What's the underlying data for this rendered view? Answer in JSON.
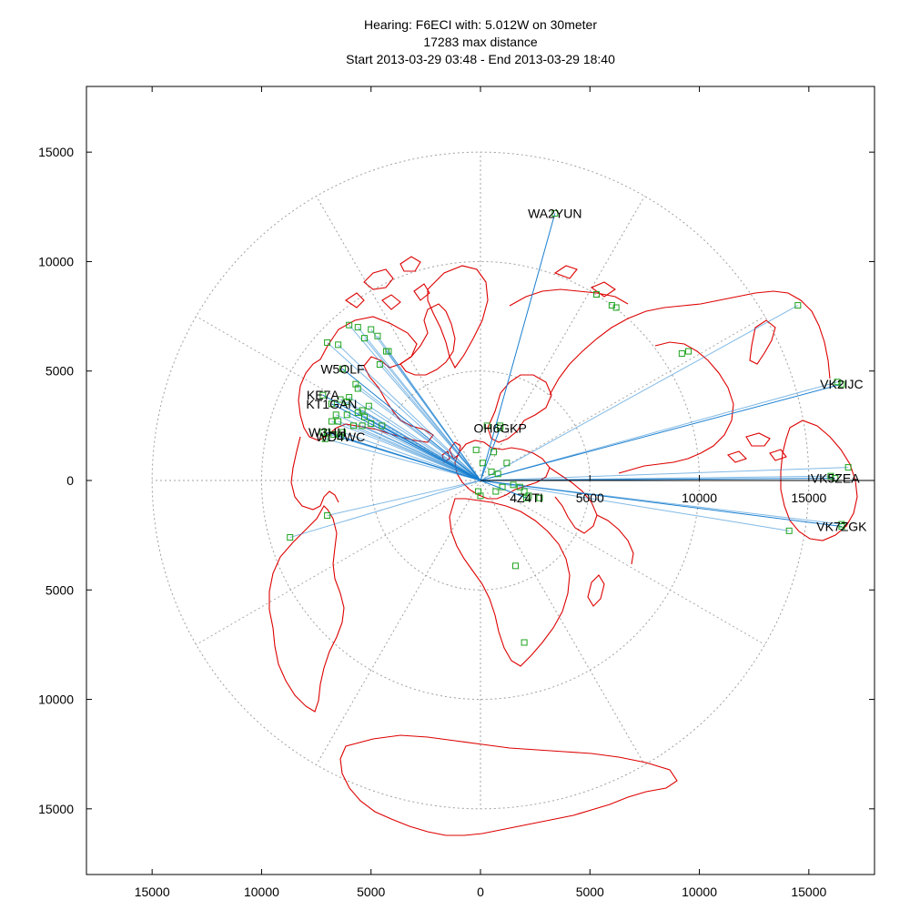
{
  "title": {
    "line1": "Hearing: F6ECI with: 5.012W on 30meter",
    "line2": "17283 max distance",
    "line3": "Start 2013-03-29 03:48 - End 2013-03-29 18:40"
  },
  "colors": {
    "coastline": "#dd0000",
    "path": "#1a7fd0",
    "spot": "#1fa31f",
    "grid": "#a0a0a0"
  },
  "chart_data": {
    "type": "scatter",
    "projection": "azimuthal-equidistant",
    "xlim": [
      -18000,
      18000
    ],
    "ylim": [
      -18000,
      18000
    ],
    "grid": true,
    "x_ticks": [
      "15000",
      "10000",
      "5000",
      "0",
      "5000",
      "10000",
      "15000"
    ],
    "x_tick_values": [
      -15000,
      -10000,
      -5000,
      0,
      5000,
      10000,
      15000
    ],
    "y_ticks": [
      "15000",
      "10000",
      "5000",
      "0",
      "5000",
      "10000",
      "15000"
    ],
    "y_tick_values": [
      15000,
      10000,
      5000,
      0,
      -5000,
      -10000,
      -15000
    ],
    "inner_axis_labels": [
      "5000",
      "10000",
      "15000"
    ],
    "inner_axis_values": [
      5000,
      10000,
      15000
    ],
    "rings": [
      5000,
      10000,
      15000
    ],
    "stations": [
      {
        "call": "WA2YUN",
        "x": 3400,
        "y": 12200
      },
      {
        "call": "VK2IJC",
        "x": 16500,
        "y": 4400
      },
      {
        "call": "VK5ZEA",
        "x": 16200,
        "y": 100
      },
      {
        "call": "VK7ZGK",
        "x": 16500,
        "y": -2100
      },
      {
        "call": "W5OLF",
        "x": -6300,
        "y": 5100
      },
      {
        "call": "KE7A",
        "x": -7200,
        "y": 3900
      },
      {
        "call": "KT1GAN",
        "x": -6800,
        "y": 3500
      },
      {
        "call": "W3HH",
        "x": -7000,
        "y": 2200
      },
      {
        "call": "WD4WC",
        "x": -6400,
        "y": 2000
      },
      {
        "call": "OH6GKP",
        "x": 900,
        "y": 2400
      },
      {
        "call": "4Z4TI",
        "x": 2100,
        "y": -800
      }
    ],
    "spots": [
      [
        -6000,
        7100
      ],
      [
        -5600,
        7000
      ],
      [
        -5000,
        6900
      ],
      [
        -4700,
        6600
      ],
      [
        -5300,
        6500
      ],
      [
        -6500,
        6200
      ],
      [
        -7000,
        6300
      ],
      [
        -4200,
        5900
      ],
      [
        -4300,
        5900
      ],
      [
        -4600,
        5300
      ],
      [
        -5700,
        4400
      ],
      [
        -5600,
        4200
      ],
      [
        -6000,
        3800
      ],
      [
        -6400,
        3700
      ],
      [
        -6100,
        3600
      ],
      [
        -5100,
        3400
      ],
      [
        -5400,
        3200
      ],
      [
        -5600,
        3100
      ],
      [
        -6100,
        3000
      ],
      [
        -6600,
        3000
      ],
      [
        -5300,
        2900
      ],
      [
        -6800,
        2700
      ],
      [
        -6500,
        2700
      ],
      [
        -5800,
        2500
      ],
      [
        -5400,
        2500
      ],
      [
        -5000,
        2600
      ],
      [
        -4500,
        2500
      ],
      [
        -6300,
        2200
      ],
      [
        -7200,
        2200
      ],
      [
        -6700,
        2100
      ],
      [
        -7100,
        1900
      ],
      [
        -7000,
        -1600
      ],
      [
        -8700,
        -2600
      ],
      [
        300,
        2500
      ],
      [
        900,
        2500
      ],
      [
        600,
        1300
      ],
      [
        1200,
        800
      ],
      [
        -200,
        1400
      ],
      [
        100,
        800
      ],
      [
        500,
        400
      ],
      [
        800,
        300
      ],
      [
        1000,
        -300
      ],
      [
        700,
        -500
      ],
      [
        1500,
        -200
      ],
      [
        1800,
        -300
      ],
      [
        2000,
        -500
      ],
      [
        2200,
        -700
      ],
      [
        2700,
        -800
      ],
      [
        0,
        -700
      ],
      [
        -100,
        -500
      ],
      [
        1600,
        -3900
      ],
      [
        2000,
        -7400
      ],
      [
        5300,
        8500
      ],
      [
        6000,
        8000
      ],
      [
        6200,
        7900
      ],
      [
        9200,
        5800
      ],
      [
        9500,
        5900
      ],
      [
        14500,
        8000
      ],
      [
        16300,
        4500
      ],
      [
        16800,
        600
      ],
      [
        16000,
        200
      ],
      [
        16500,
        -2000
      ],
      [
        14100,
        -2300
      ]
    ]
  }
}
